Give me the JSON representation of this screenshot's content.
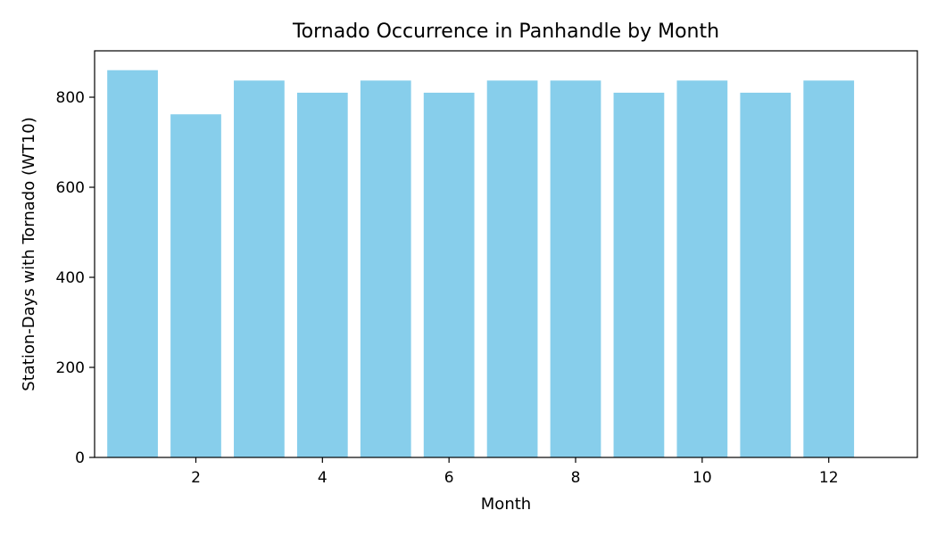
{
  "chart_data": {
    "type": "bar",
    "title": "Tornado Occurrence in Panhandle by Month",
    "xlabel": "Month",
    "ylabel": "Station-Days with Tornado (WT10)",
    "categories": [
      1,
      2,
      3,
      4,
      5,
      6,
      7,
      8,
      9,
      10,
      11,
      12
    ],
    "values": [
      860,
      762,
      837,
      810,
      837,
      810,
      837,
      837,
      810,
      837,
      810,
      837
    ],
    "bar_color": "#87CEEB",
    "xlim": [
      0.4,
      13.4
    ],
    "ylim": [
      0,
      903
    ],
    "xticks": [
      2,
      4,
      6,
      8,
      10,
      12
    ],
    "xtick_labels": [
      "2",
      "4",
      "6",
      "8",
      "10",
      "12"
    ],
    "yticks": [
      0,
      200,
      400,
      600,
      800
    ],
    "ytick_labels": [
      "0",
      "200",
      "400",
      "600",
      "800"
    ],
    "grid": false,
    "legend": false
  }
}
